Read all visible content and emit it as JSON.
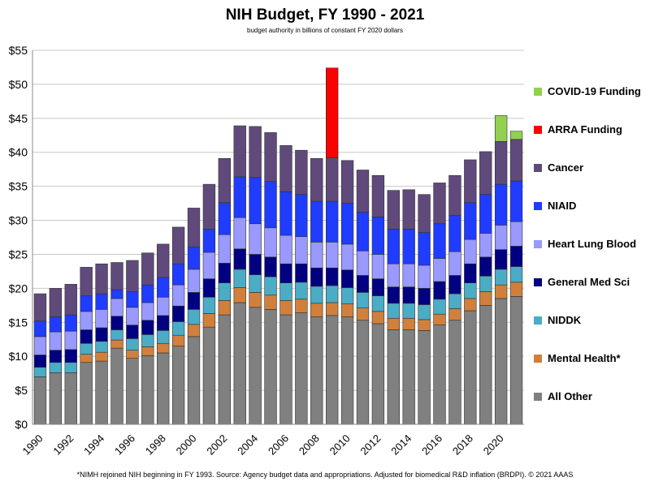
{
  "chart_data": {
    "type": "bar",
    "stacked": true,
    "title": "NIH Budget, FY 1990 - 2021",
    "subtitle": "budget authority in billions of constant FY 2020 dollars",
    "footnote": "*NIMH rejoined NIH beginning in FY 1993. Source: Agency budget data and appropriations. Adjusted for biomedical R&D inflation (BRDPI). © 2021 AAAS",
    "categories": [
      1990,
      1991,
      1992,
      1993,
      1994,
      1995,
      1996,
      1997,
      1998,
      1999,
      2000,
      2001,
      2002,
      2003,
      2004,
      2005,
      2006,
      2007,
      2008,
      2009,
      2010,
      2011,
      2012,
      2013,
      2014,
      2015,
      2016,
      2017,
      2018,
      2019,
      2020,
      2021
    ],
    "x_tick_labels": [
      "1990",
      "1992",
      "1994",
      "1996",
      "1998",
      "2000",
      "2002",
      "2004",
      "2006",
      "2008",
      "2010",
      "2012",
      "2014",
      "2016",
      "2018",
      "2020"
    ],
    "y_tick_labels": [
      "$0",
      "$5",
      "$10",
      "$15",
      "$20",
      "$25",
      "$30",
      "$35",
      "$40",
      "$45",
      "$50",
      "$55"
    ],
    "ylim": [
      0,
      55
    ],
    "grid": true,
    "legend_position": "right",
    "series": [
      {
        "name": "All Other",
        "color": "#808080",
        "values": [
          7.0,
          7.6,
          7.6,
          9.1,
          9.3,
          11.2,
          9.7,
          10.1,
          10.5,
          11.5,
          12.9,
          14.3,
          16.1,
          17.9,
          17.2,
          16.9,
          16.1,
          16.4,
          15.8,
          16.0,
          15.8,
          15.3,
          14.8,
          13.9,
          13.9,
          13.8,
          14.6,
          15.3,
          16.7,
          17.5,
          18.5,
          18.8
        ]
      },
      {
        "name": "Mental Health*",
        "color": "#d0803c",
        "values": [
          0,
          0,
          0,
          1.2,
          1.3,
          1.2,
          1.2,
          1.3,
          1.4,
          1.6,
          1.8,
          2.0,
          2.1,
          2.2,
          2.2,
          2.1,
          2.1,
          2.0,
          2.0,
          1.9,
          1.9,
          1.8,
          1.8,
          1.7,
          1.7,
          1.6,
          1.6,
          1.7,
          1.8,
          2.0,
          2.0,
          2.1
        ]
      },
      {
        "name": "NIDDK",
        "color": "#4bacc6",
        "values": [
          1.4,
          1.5,
          1.5,
          1.6,
          1.6,
          1.5,
          1.7,
          1.8,
          1.9,
          2.0,
          2.2,
          2.4,
          2.6,
          2.7,
          2.6,
          2.7,
          2.6,
          2.5,
          2.5,
          2.5,
          2.4,
          2.3,
          2.3,
          2.2,
          2.2,
          2.2,
          2.2,
          2.2,
          2.3,
          2.3,
          2.3,
          2.3
        ]
      },
      {
        "name": "General Med Sci",
        "color": "#000080",
        "values": [
          1.8,
          1.8,
          1.9,
          2.0,
          2.0,
          2.0,
          2.0,
          2.1,
          2.2,
          2.3,
          2.5,
          2.7,
          2.9,
          3.0,
          3.0,
          2.9,
          2.8,
          2.7,
          2.7,
          2.6,
          2.6,
          2.5,
          2.5,
          2.4,
          2.4,
          2.4,
          2.6,
          2.7,
          2.8,
          2.8,
          2.9,
          3.0
        ]
      },
      {
        "name": "Heart Lung Blood",
        "color": "#9999ff",
        "values": [
          2.7,
          2.7,
          2.7,
          2.7,
          2.7,
          2.6,
          2.6,
          2.6,
          2.7,
          3.1,
          3.4,
          3.9,
          4.2,
          4.6,
          4.5,
          4.3,
          4.2,
          4.0,
          3.8,
          3.8,
          3.8,
          3.6,
          3.6,
          3.4,
          3.4,
          3.4,
          3.4,
          3.5,
          3.6,
          3.5,
          3.6,
          3.6
        ]
      },
      {
        "name": "NIAID",
        "color": "#1f3cff",
        "values": [
          2.3,
          2.2,
          2.4,
          2.3,
          2.3,
          1.3,
          2.3,
          2.6,
          2.9,
          3.1,
          3.3,
          3.4,
          4.7,
          6.0,
          6.8,
          6.8,
          6.4,
          6.2,
          6.0,
          6.0,
          6.0,
          5.7,
          5.5,
          5.1,
          5.1,
          4.8,
          5.1,
          5.3,
          5.4,
          5.7,
          6.0,
          6.0
        ]
      },
      {
        "name": "Cancer",
        "color": "#604a7b",
        "values": [
          4.0,
          4.2,
          4.5,
          4.2,
          4.4,
          4.0,
          4.6,
          4.7,
          4.9,
          5.4,
          5.7,
          6.6,
          6.5,
          7.5,
          7.5,
          7.2,
          6.8,
          6.5,
          6.3,
          6.4,
          6.3,
          6.2,
          6.1,
          5.7,
          5.8,
          5.6,
          6.0,
          5.9,
          6.3,
          6.3,
          6.3,
          6.1
        ]
      },
      {
        "name": "ARRA Funding",
        "color": "#ff0000",
        "values": [
          0,
          0,
          0,
          0,
          0,
          0,
          0,
          0,
          0,
          0,
          0,
          0,
          0,
          0,
          0,
          0,
          0,
          0,
          0,
          13.2,
          0,
          0,
          0,
          0,
          0,
          0,
          0,
          0,
          0,
          0,
          0,
          0
        ]
      },
      {
        "name": "COVID-19 Funding",
        "color": "#92d050",
        "values": [
          0,
          0,
          0,
          0,
          0,
          0,
          0,
          0,
          0,
          0,
          0,
          0,
          0,
          0,
          0,
          0,
          0,
          0,
          0,
          0,
          0,
          0,
          0,
          0,
          0,
          0,
          0,
          0,
          0,
          0,
          3.8,
          1.2
        ]
      }
    ]
  }
}
